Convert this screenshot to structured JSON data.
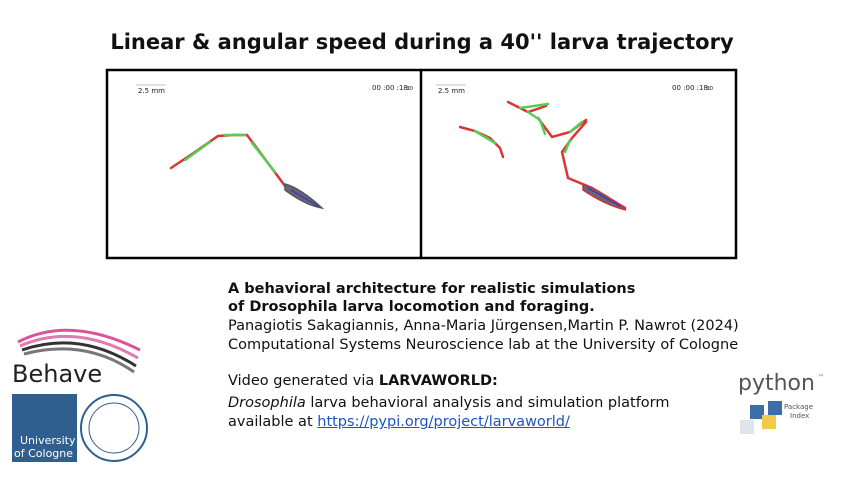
{
  "header": {
    "title": "Linear & angular speed during a 40'' larva trajectory"
  },
  "panels": [
    {
      "scale": "2.5 mm",
      "time": "00 :00 :18:",
      "time_frame": "30"
    },
    {
      "scale": "2.5 mm",
      "time": "00 :00 :18:",
      "time_frame": "30"
    }
  ],
  "paper": {
    "title_lines": [
      "A behavioral architecture for realistic simulations",
      "of Drosophila larva locomotion and foraging."
    ],
    "authors": "Panagiotis Sakagiannis,  Anna-Maria  Jürgensen,Martin P. Nawrot (2024)",
    "lab": "Computational Systems Neuroscience lab at the University of Cologne"
  },
  "video": {
    "prefix": "Video generated via ",
    "tool": "LARVAWORLD:",
    "desc_italic": "Drosophila",
    "desc_rest": " larva behavioral analysis and simulation platform",
    "avail": "available at ",
    "link": "https://pypi.org/project/larvaworld/"
  },
  "logos": {
    "behave": "Behave",
    "university": [
      "University",
      "of Cologne"
    ],
    "python": "python",
    "python_tm": "™",
    "pypi": [
      "Package",
      "Index"
    ]
  }
}
